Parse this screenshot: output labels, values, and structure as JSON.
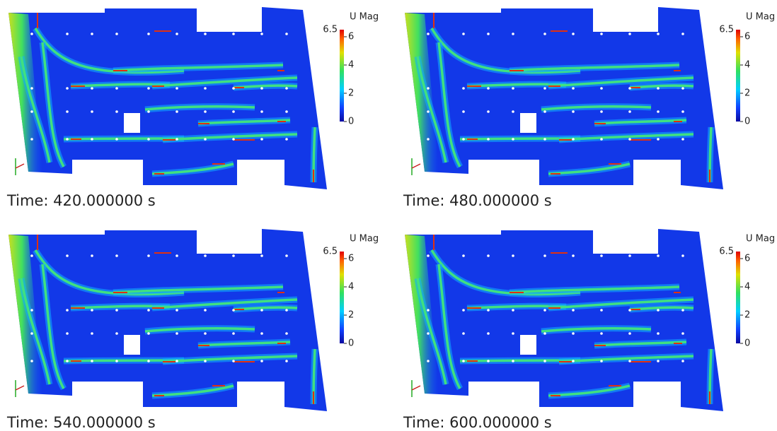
{
  "panels": [
    {
      "time": "Time: 420.000000 s"
    },
    {
      "time": "Time: 480.000000 s"
    },
    {
      "time": "Time: 540.000000 s"
    },
    {
      "time": "Time: 600.000000 s"
    }
  ],
  "colorbar": {
    "title": "U Mag",
    "range": [
      0,
      6.5
    ],
    "ticks": [
      0,
      2,
      4,
      6
    ]
  }
}
